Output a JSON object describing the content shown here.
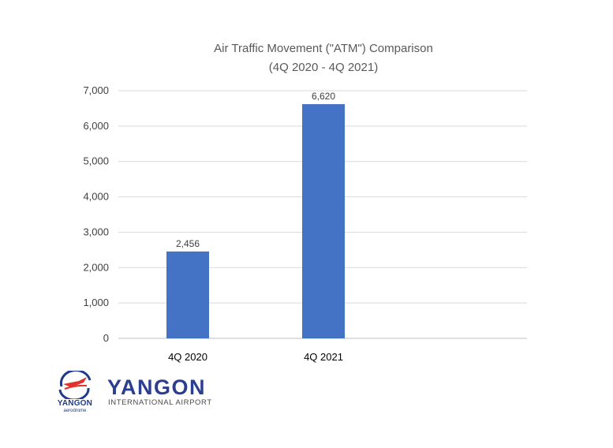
{
  "chart_data": {
    "type": "bar",
    "title": "Air Traffic Movement (\"ATM\") Comparison",
    "subtitle": "(4Q 2020 - 4Q 2021)",
    "categories": [
      "4Q 2020",
      "4Q 2021"
    ],
    "values": [
      2456,
      6620
    ],
    "data_labels": [
      "2,456",
      "6,620"
    ],
    "yticks": [
      "0",
      "1,000",
      "2,000",
      "3,000",
      "4,000",
      "5,000",
      "6,000",
      "7,000"
    ],
    "ylim": [
      0,
      7000
    ],
    "grid": true,
    "bar_color": "#4472c4"
  },
  "logo": {
    "emblem_word": "YANGON",
    "emblem_sub": "aerodrome",
    "main": "YANGON",
    "sub": "INTERNATIONAL AIRPORT"
  }
}
